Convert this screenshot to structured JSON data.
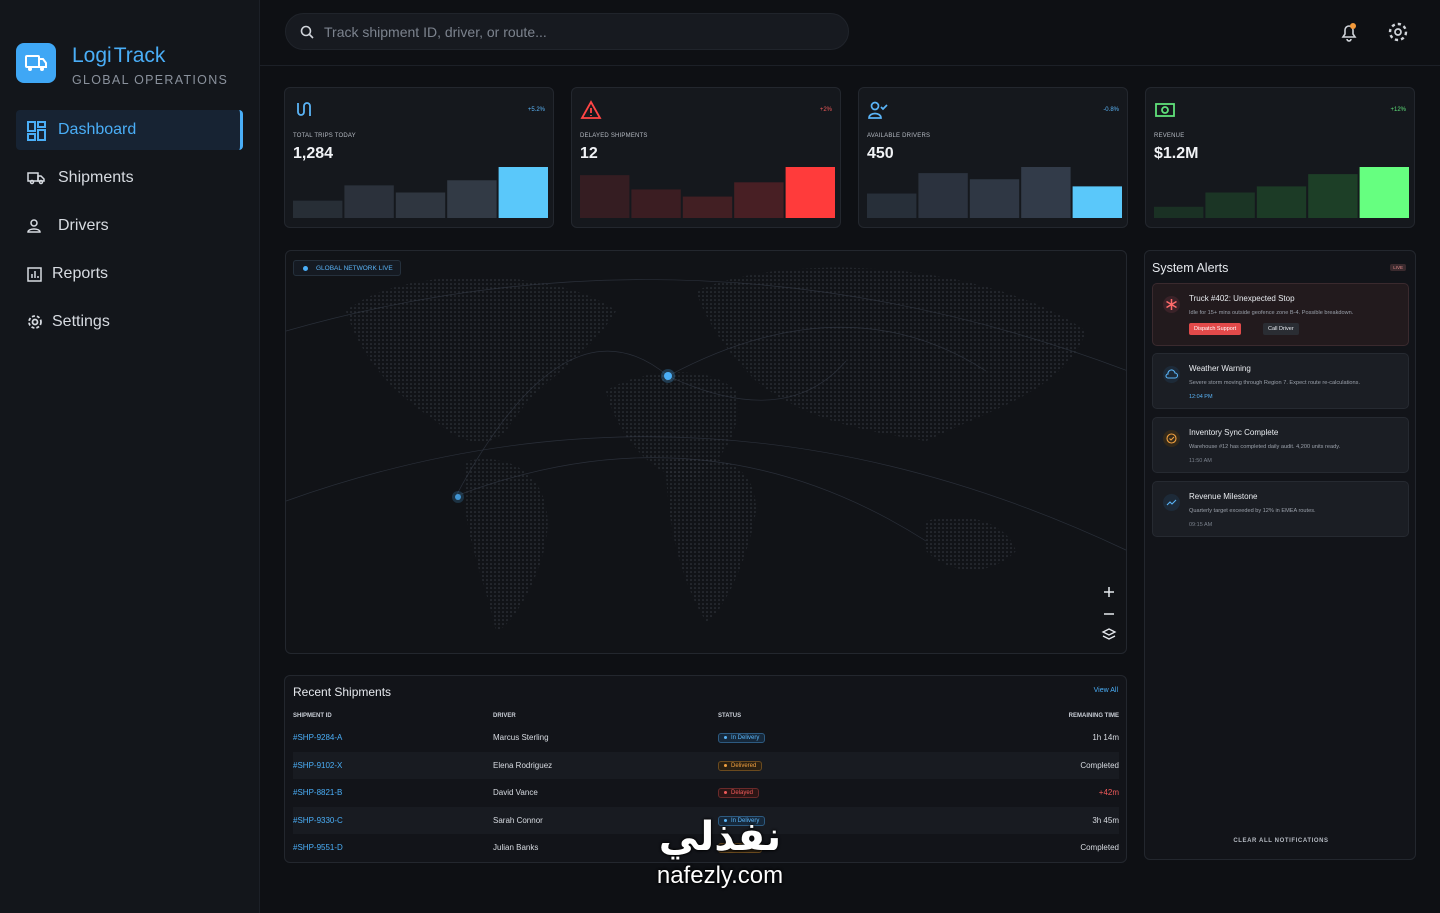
{
  "sidebar": {
    "brand_part1": "Logi",
    "brand_part2": "Track",
    "subtitle": "GLOBAL OPERATIONS",
    "nav": [
      "Dashboard",
      "Shipments",
      "Drivers",
      "Reports",
      "Settings"
    ]
  },
  "search": {
    "placeholder": "Track shipment ID, driver, or route..."
  },
  "kpis": [
    {
      "label": "TOTAL TRIPS TODAY",
      "value": "1,284",
      "trend": "+5.2%",
      "bars": [
        34,
        64,
        50,
        74,
        100
      ]
    },
    {
      "label": "DELAYED SHIPMENTS",
      "value": "12",
      "trend": "+2%",
      "bars": [
        84,
        56,
        42,
        70,
        100
      ]
    },
    {
      "label": "AVAILABLE DRIVERS",
      "value": "450",
      "trend": "-0.8%",
      "bars": [
        48,
        88,
        76,
        100,
        62
      ]
    },
    {
      "label": "REVENUE",
      "value": "$1.2M",
      "trend": "+12%",
      "bars": [
        22,
        50,
        62,
        86,
        100
      ]
    }
  ],
  "map": {
    "badge": "GLOBAL NETWORK LIVE"
  },
  "alerts": {
    "title": "System Alerts",
    "badge": "LIVE",
    "items": [
      {
        "title": "Truck #402: Unexpected Stop",
        "text": "Idle for 15+ mins outside geofence zone B-4. Possible breakdown.",
        "actions": [
          "Dispatch Support",
          "Call Driver"
        ]
      },
      {
        "title": "Weather Warning",
        "text": "Severe storm moving through Region 7. Expect route re-calculations.",
        "time": "12:04 PM"
      },
      {
        "title": "Inventory Sync Complete",
        "text": "Warehouse #12 has completed daily audit. 4,200 units ready.",
        "time": "11:50 AM"
      },
      {
        "title": "Revenue Milestone",
        "text": "Quarterly target exceeded by 12% in EMEA routes.",
        "time": "09:15 AM"
      }
    ],
    "clear": "CLEAR ALL NOTIFICATIONS"
  },
  "shipments": {
    "title": "Recent Shipments",
    "link": "View All",
    "columns": [
      "SHIPMENT ID",
      "DRIVER",
      "STATUS",
      "REMAINING TIME"
    ],
    "rows": [
      [
        "#SHP-9284-A",
        "Marcus Sterling",
        "In Delivery",
        "1h 14m"
      ],
      [
        "#SHP-9102-X",
        "Elena Rodriguez",
        "Delivered",
        "Completed"
      ],
      [
        "#SHP-8821-B",
        "David Vance",
        "Delayed",
        "+42m"
      ],
      [
        "#SHP-9330-C",
        "Sarah Connor",
        "In Delivery",
        "3h 45m"
      ],
      [
        "#SHP-9551-D",
        "Julian Banks",
        "Delivered",
        "Completed"
      ]
    ]
  },
  "watermark": {
    "arabic": "نفذلي",
    "site": "nafezly.com"
  }
}
